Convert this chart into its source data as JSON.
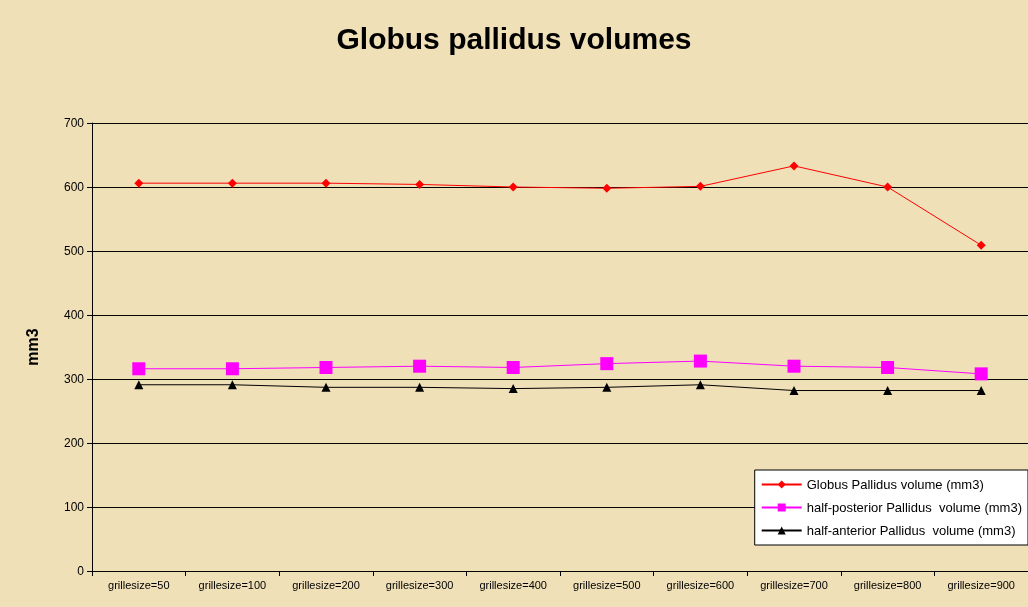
{
  "chart_data": {
    "type": "line",
    "title": "Globus pallidus volumes",
    "ylabel": "mm3",
    "categories": [
      "grillesize=50",
      "grillesize=100",
      "grillesize=200",
      "grillesize=300",
      "grillesize=400",
      "grillesize=500",
      "grillesize=600",
      "grillesize=700",
      "grillesize=800",
      "grillesize=900"
    ],
    "series": [
      {
        "name": "Globus Pallidus volume (mm3)",
        "color": "#ff0000",
        "marker": "diamond",
        "values": [
          606,
          606,
          606,
          604,
          600,
          598,
          601,
          633,
          600,
          509
        ]
      },
      {
        "name": "half-posterior Pallidus  volume (mm3)",
        "color": "#ff00ff",
        "marker": "square",
        "values": [
          316,
          316,
          318,
          320,
          318,
          324,
          328,
          320,
          318,
          308
        ]
      },
      {
        "name": "half-anterior Pallidus  volume (mm3)",
        "color": "#000000",
        "marker": "triangle",
        "values": [
          291,
          291,
          287,
          287,
          285,
          287,
          291,
          282,
          282,
          282
        ]
      }
    ],
    "ylim": [
      0,
      700
    ],
    "yticks": [
      0,
      100,
      200,
      300,
      400,
      500,
      600,
      700
    ],
    "grid": "y",
    "legend": "bottom right"
  }
}
